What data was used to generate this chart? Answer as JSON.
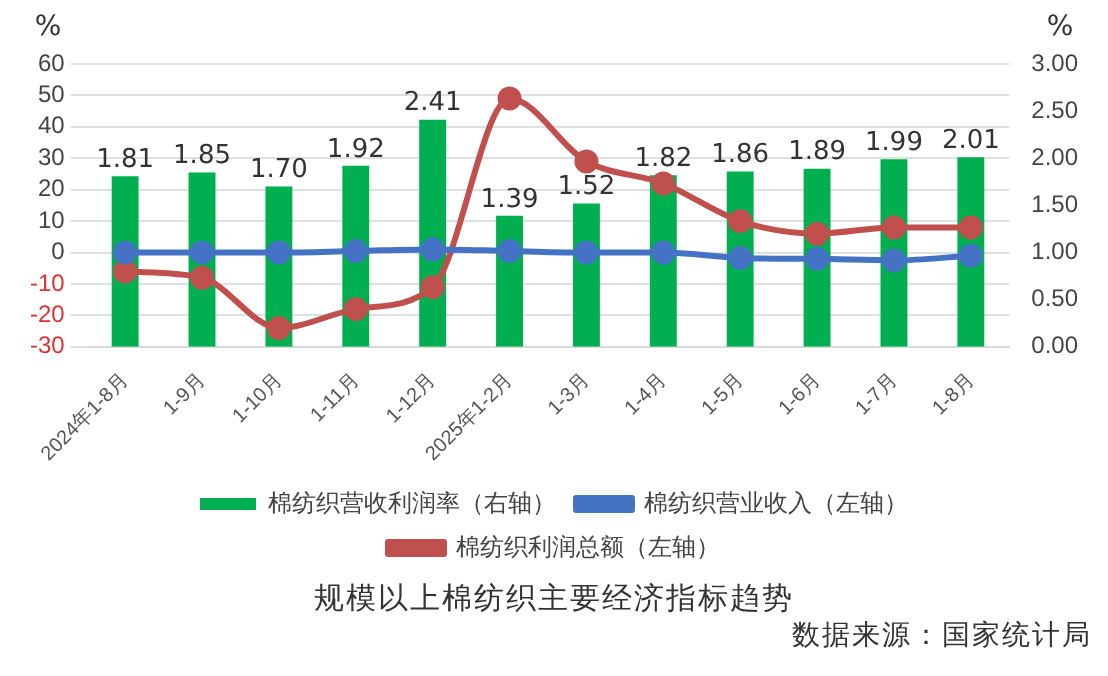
{
  "chart_data": {
    "type": "bar",
    "title": "规模以上棉纺织主要经济指标趋势",
    "annotations": [
      "数据来源：国家统计局"
    ],
    "ylabel": "%",
    "y2label": "%",
    "categories": [
      "2024年1-8月",
      "1-9月",
      "1-10月",
      "1-11月",
      "1-12月",
      "2025年1-2月",
      "1-3月",
      "1-4月",
      "1-5月",
      "1-6月",
      "1-7月",
      "1-8月"
    ],
    "series": [
      {
        "name": "棉纺织营收利润率（右轴）",
        "axis": "y2",
        "color": "#00b050",
        "values": [
          1.81,
          1.85,
          1.7,
          1.92,
          2.41,
          1.39,
          1.52,
          1.82,
          1.86,
          1.89,
          1.99,
          2.01
        ],
        "value_labels": [
          "1.81",
          "1.85",
          "1.70",
          "1.92",
          "2.41",
          "1.39",
          "1.52",
          "1.82",
          "1.86",
          "1.89",
          "1.99",
          "2.01"
        ]
      },
      {
        "name": "棉纺织营业收入（左轴）",
        "type": "line",
        "color": "#4472c4",
        "values": [
          0,
          0,
          0,
          0.5,
          1,
          0.5,
          0,
          0,
          -1.7,
          -2,
          -2.5,
          -1
        ]
      },
      {
        "name": "棉纺织利润总额（左轴）",
        "type": "line",
        "color": "#c0504d",
        "values": [
          -6,
          -8,
          -24,
          -18,
          -11,
          49,
          29,
          22,
          10,
          6,
          8,
          8
        ]
      }
    ],
    "ylim": [
      -30,
      60
    ],
    "yticks": [
      -30,
      -20,
      -10,
      0,
      10,
      20,
      30,
      40,
      50,
      60
    ],
    "y2lim": [
      0,
      3
    ],
    "y2ticks": [
      {
        "value": 0,
        "label": "0.00"
      },
      {
        "value": 0.5,
        "label": "0.50"
      },
      {
        "value": 1,
        "label": "1.00"
      },
      {
        "value": 1.5,
        "label": "1.50"
      },
      {
        "value": 2,
        "label": "2.00"
      },
      {
        "value": 2.5,
        "label": "2.50"
      },
      {
        "value": 3,
        "label": "3.00"
      }
    ],
    "grid": "y",
    "legend": "bottom",
    "marker": "circle",
    "line_style": "solid"
  }
}
